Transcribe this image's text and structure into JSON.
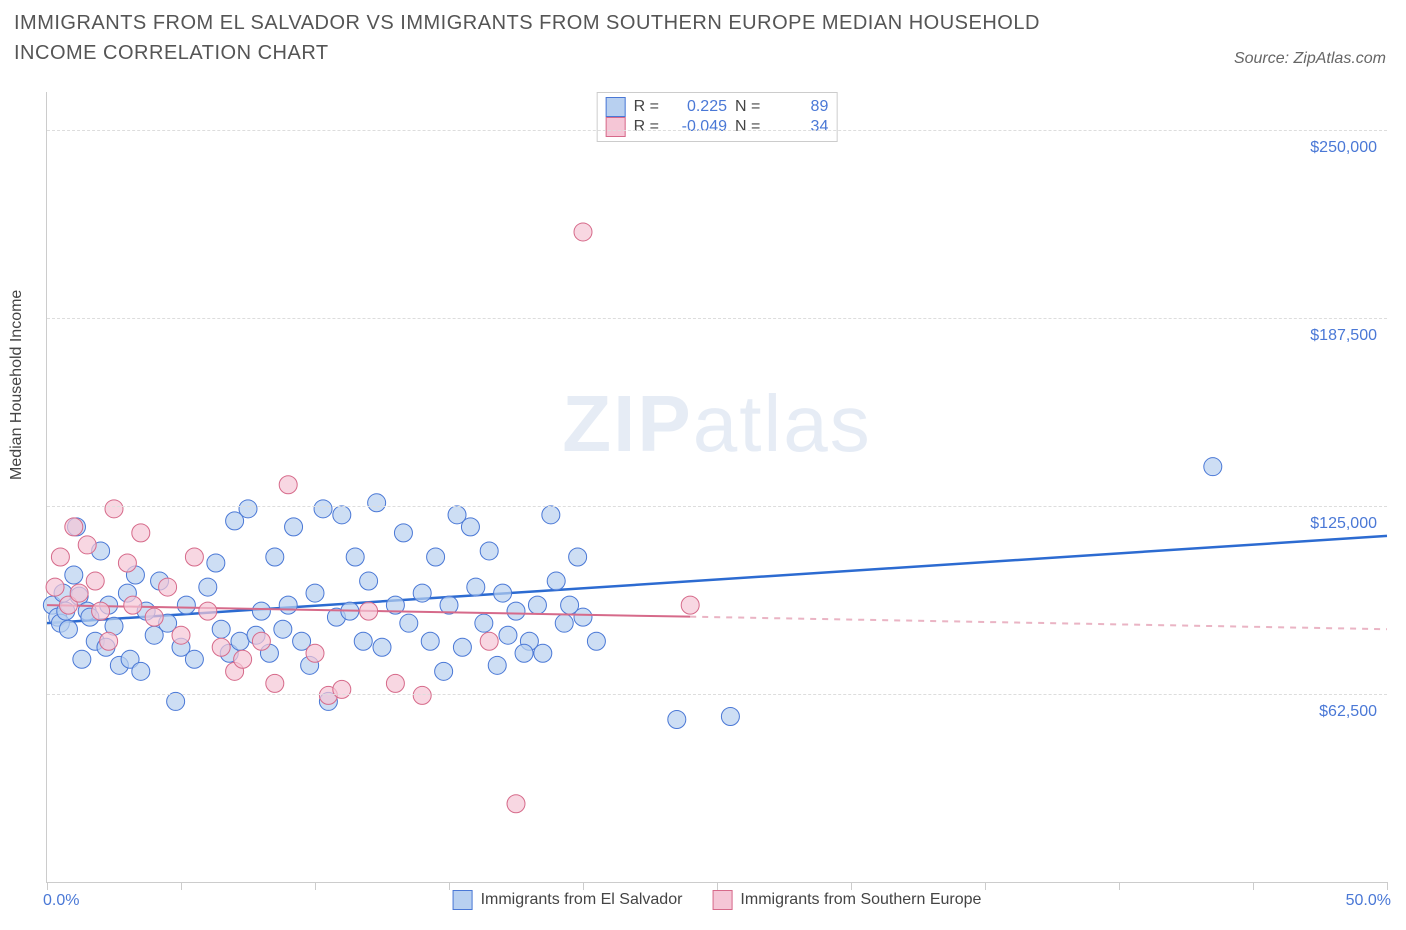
{
  "title": "IMMIGRANTS FROM EL SALVADOR VS IMMIGRANTS FROM SOUTHERN EUROPE MEDIAN HOUSEHOLD INCOME CORRELATION CHART",
  "source_label": "Source: ZipAtlas.com",
  "watermark_bold": "ZIP",
  "watermark_light": "atlas",
  "ylabel": "Median Household Income",
  "xlim": [
    0,
    50
  ],
  "ylim": [
    0,
    262500
  ],
  "x_tick_positions": [
    0,
    5,
    10,
    15,
    20,
    25,
    30,
    35,
    40,
    45,
    50
  ],
  "y_tick_positions": [
    62500,
    125000,
    187500,
    250000
  ],
  "y_tick_labels": [
    "$62,500",
    "$125,000",
    "$187,500",
    "$250,000"
  ],
  "x_lim_labels": [
    "0.0%",
    "50.0%"
  ],
  "stats_box": {
    "rows": [
      {
        "swatch_fill": "#b8d0f0",
        "swatch_border": "#4a78d6",
        "r_label": "R =",
        "r_value": "0.225",
        "n_label": "N =",
        "n_value": "89"
      },
      {
        "swatch_fill": "#f5c6d6",
        "swatch_border": "#d66a8a",
        "r_label": "R =",
        "r_value": "-0.049",
        "n_label": "N =",
        "n_value": "34"
      }
    ]
  },
  "legend_bottom": [
    {
      "swatch_fill": "#b8d0f0",
      "swatch_border": "#4a78d6",
      "label": "Immigrants from El Salvador"
    },
    {
      "swatch_fill": "#f5c6d6",
      "swatch_border": "#d66a8a",
      "label": "Immigrants from Southern Europe"
    }
  ],
  "series": [
    {
      "name": "el_salvador",
      "marker_fill": "#b8d0f0",
      "marker_stroke": "#4a78d6",
      "marker_radius": 9,
      "marker_opacity": 0.7,
      "trend_color": "#2c6bd1",
      "trend_width": 2.5,
      "trend_solid_xmax": 50,
      "trend": {
        "y_at_xmin": 86000,
        "y_at_xmax": 115000
      },
      "points": [
        [
          0.2,
          92000
        ],
        [
          0.4,
          88000
        ],
        [
          0.5,
          86000
        ],
        [
          0.6,
          96000
        ],
        [
          0.7,
          90000
        ],
        [
          0.8,
          84000
        ],
        [
          1.0,
          102000
        ],
        [
          1.1,
          118000
        ],
        [
          1.2,
          95000
        ],
        [
          1.3,
          74000
        ],
        [
          1.5,
          90000
        ],
        [
          1.6,
          88000
        ],
        [
          1.8,
          80000
        ],
        [
          2.0,
          110000
        ],
        [
          2.2,
          78000
        ],
        [
          2.3,
          92000
        ],
        [
          2.5,
          85000
        ],
        [
          2.7,
          72000
        ],
        [
          3.0,
          96000
        ],
        [
          3.1,
          74000
        ],
        [
          3.3,
          102000
        ],
        [
          3.5,
          70000
        ],
        [
          3.7,
          90000
        ],
        [
          4.0,
          82000
        ],
        [
          4.2,
          100000
        ],
        [
          4.5,
          86000
        ],
        [
          4.8,
          60000
        ],
        [
          5.0,
          78000
        ],
        [
          5.2,
          92000
        ],
        [
          5.5,
          74000
        ],
        [
          6.0,
          98000
        ],
        [
          6.3,
          106000
        ],
        [
          6.5,
          84000
        ],
        [
          6.8,
          76000
        ],
        [
          7.0,
          120000
        ],
        [
          7.2,
          80000
        ],
        [
          7.5,
          124000
        ],
        [
          7.8,
          82000
        ],
        [
          8.0,
          90000
        ],
        [
          8.3,
          76000
        ],
        [
          8.5,
          108000
        ],
        [
          8.8,
          84000
        ],
        [
          9.0,
          92000
        ],
        [
          9.2,
          118000
        ],
        [
          9.5,
          80000
        ],
        [
          9.8,
          72000
        ],
        [
          10.0,
          96000
        ],
        [
          10.3,
          124000
        ],
        [
          10.5,
          60000
        ],
        [
          10.8,
          88000
        ],
        [
          11.0,
          122000
        ],
        [
          11.3,
          90000
        ],
        [
          11.5,
          108000
        ],
        [
          11.8,
          80000
        ],
        [
          12.0,
          100000
        ],
        [
          12.3,
          126000
        ],
        [
          12.5,
          78000
        ],
        [
          13.0,
          92000
        ],
        [
          13.3,
          116000
        ],
        [
          13.5,
          86000
        ],
        [
          14.0,
          96000
        ],
        [
          14.3,
          80000
        ],
        [
          14.5,
          108000
        ],
        [
          15.0,
          92000
        ],
        [
          15.3,
          122000
        ],
        [
          15.5,
          78000
        ],
        [
          16.0,
          98000
        ],
        [
          16.3,
          86000
        ],
        [
          16.5,
          110000
        ],
        [
          17.0,
          96000
        ],
        [
          17.2,
          82000
        ],
        [
          17.5,
          90000
        ],
        [
          18.0,
          80000
        ],
        [
          18.3,
          92000
        ],
        [
          18.5,
          76000
        ],
        [
          19.0,
          100000
        ],
        [
          19.3,
          86000
        ],
        [
          19.5,
          92000
        ],
        [
          20.0,
          88000
        ],
        [
          20.5,
          80000
        ],
        [
          23.5,
          54000
        ],
        [
          25.5,
          55000
        ],
        [
          19.8,
          108000
        ],
        [
          18.8,
          122000
        ],
        [
          17.8,
          76000
        ],
        [
          16.8,
          72000
        ],
        [
          15.8,
          118000
        ],
        [
          14.8,
          70000
        ],
        [
          43.5,
          138000
        ]
      ]
    },
    {
      "name": "southern_europe",
      "marker_fill": "#f5c6d6",
      "marker_stroke": "#d66a8a",
      "marker_radius": 9,
      "marker_opacity": 0.7,
      "trend_color": "#d66a8a",
      "trend_width": 2,
      "trend_solid_xmax": 24,
      "trend": {
        "y_at_xmin": 92000,
        "y_at_xmax": 84000
      },
      "points": [
        [
          0.3,
          98000
        ],
        [
          0.5,
          108000
        ],
        [
          0.8,
          92000
        ],
        [
          1.0,
          118000
        ],
        [
          1.2,
          96000
        ],
        [
          1.5,
          112000
        ],
        [
          1.8,
          100000
        ],
        [
          2.0,
          90000
        ],
        [
          2.3,
          80000
        ],
        [
          2.5,
          124000
        ],
        [
          3.0,
          106000
        ],
        [
          3.2,
          92000
        ],
        [
          3.5,
          116000
        ],
        [
          4.0,
          88000
        ],
        [
          4.5,
          98000
        ],
        [
          5.0,
          82000
        ],
        [
          5.5,
          108000
        ],
        [
          6.0,
          90000
        ],
        [
          6.5,
          78000
        ],
        [
          7.0,
          70000
        ],
        [
          7.3,
          74000
        ],
        [
          8.0,
          80000
        ],
        [
          8.5,
          66000
        ],
        [
          9.0,
          132000
        ],
        [
          10.0,
          76000
        ],
        [
          10.5,
          62000
        ],
        [
          11.0,
          64000
        ],
        [
          12.0,
          90000
        ],
        [
          13.0,
          66000
        ],
        [
          14.0,
          62000
        ],
        [
          16.5,
          80000
        ],
        [
          17.5,
          26000
        ],
        [
          20.0,
          216000
        ],
        [
          24.0,
          92000
        ]
      ]
    }
  ],
  "chart_style": {
    "background_color": "#ffffff",
    "grid_color": "#dddddd",
    "axis_color": "#cccccc",
    "tick_label_color": "#4a78d6",
    "title_fontsize": 20,
    "label_fontsize": 16,
    "tick_fontsize": 16
  }
}
